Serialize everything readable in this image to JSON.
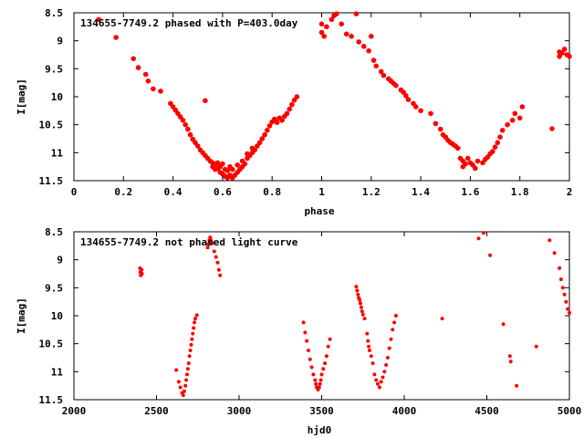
{
  "chart_data": [
    {
      "type": "scatter",
      "title": "134655-7749.2 phased with P=403.0day",
      "xlabel": "phase",
      "ylabel": "I[mag]",
      "xlim": [
        0,
        2
      ],
      "ylim": [
        11.5,
        8.5
      ],
      "y_inverted": true,
      "x_ticks": [
        "0",
        "0.2",
        "0.4",
        "0.6",
        "0.8",
        "1",
        "1.2",
        "1.4",
        "1.6",
        "1.8",
        "2"
      ],
      "y_ticks": [
        "8.5",
        "9",
        "9.5",
        "10",
        "10.5",
        "11",
        "11.5"
      ],
      "marker_color": "#ff0000",
      "points": [
        [
          0.1,
          8.62
        ],
        [
          0.17,
          8.94
        ],
        [
          0.24,
          9.32
        ],
        [
          0.26,
          9.48
        ],
        [
          0.29,
          9.6
        ],
        [
          0.3,
          9.72
        ],
        [
          0.32,
          9.86
        ],
        [
          0.35,
          9.9
        ],
        [
          0.39,
          10.12
        ],
        [
          0.4,
          10.18
        ],
        [
          0.41,
          10.24
        ],
        [
          0.42,
          10.3
        ],
        [
          0.43,
          10.36
        ],
        [
          0.44,
          10.42
        ],
        [
          0.45,
          10.5
        ],
        [
          0.46,
          10.58
        ],
        [
          0.47,
          10.68
        ],
        [
          0.48,
          10.76
        ],
        [
          0.49,
          10.82
        ],
        [
          0.5,
          10.88
        ],
        [
          0.51,
          10.95
        ],
        [
          0.52,
          11.0
        ],
        [
          0.53,
          11.05
        ],
        [
          0.54,
          11.1
        ],
        [
          0.55,
          11.15
        ],
        [
          0.56,
          11.18
        ],
        [
          0.56,
          11.25
        ],
        [
          0.57,
          11.22
        ],
        [
          0.57,
          11.3
        ],
        [
          0.58,
          11.28
        ],
        [
          0.58,
          11.18
        ],
        [
          0.59,
          11.35
        ],
        [
          0.59,
          11.25
        ],
        [
          0.6,
          11.38
        ],
        [
          0.6,
          11.2
        ],
        [
          0.61,
          11.42
        ],
        [
          0.61,
          11.3
        ],
        [
          0.62,
          11.45
        ],
        [
          0.62,
          11.32
        ],
        [
          0.63,
          11.4
        ],
        [
          0.63,
          11.25
        ],
        [
          0.64,
          11.45
        ],
        [
          0.64,
          11.3
        ],
        [
          0.65,
          11.4
        ],
        [
          0.66,
          11.35
        ],
        [
          0.66,
          11.22
        ],
        [
          0.67,
          11.3
        ],
        [
          0.68,
          11.25
        ],
        [
          0.68,
          11.15
        ],
        [
          0.69,
          11.2
        ],
        [
          0.7,
          11.1
        ],
        [
          0.7,
          11.02
        ],
        [
          0.71,
          11.05
        ],
        [
          0.72,
          11.0
        ],
        [
          0.72,
          10.92
        ],
        [
          0.73,
          10.95
        ],
        [
          0.74,
          10.88
        ],
        [
          0.75,
          10.82
        ],
        [
          0.76,
          10.75
        ],
        [
          0.77,
          10.68
        ],
        [
          0.78,
          10.6
        ],
        [
          0.79,
          10.52
        ],
        [
          0.8,
          10.45
        ],
        [
          0.81,
          10.4
        ],
        [
          0.82,
          10.46
        ],
        [
          0.83,
          10.38
        ],
        [
          0.84,
          10.42
        ],
        [
          0.85,
          10.35
        ],
        [
          0.86,
          10.3
        ],
        [
          0.87,
          10.22
        ],
        [
          0.88,
          10.14
        ],
        [
          0.89,
          10.06
        ],
        [
          0.9,
          10.0
        ],
        [
          0.53,
          10.07
        ],
        [
          1.0,
          8.7
        ],
        [
          1.0,
          8.85
        ],
        [
          1.01,
          8.92
        ],
        [
          1.02,
          8.75
        ],
        [
          1.04,
          8.62
        ],
        [
          1.05,
          8.55
        ],
        [
          1.06,
          8.52
        ],
        [
          1.08,
          8.7
        ],
        [
          1.1,
          8.88
        ],
        [
          1.12,
          8.92
        ],
        [
          1.14,
          8.52
        ],
        [
          1.15,
          9.02
        ],
        [
          1.17,
          9.1
        ],
        [
          1.19,
          9.18
        ],
        [
          1.2,
          8.92
        ],
        [
          1.21,
          9.35
        ],
        [
          1.22,
          9.45
        ],
        [
          1.24,
          9.55
        ],
        [
          1.25,
          9.62
        ],
        [
          1.27,
          9.68
        ],
        [
          1.28,
          9.72
        ],
        [
          1.29,
          9.76
        ],
        [
          1.3,
          9.8
        ],
        [
          1.32,
          9.88
        ],
        [
          1.33,
          9.92
        ],
        [
          1.34,
          9.98
        ],
        [
          1.35,
          10.05
        ],
        [
          1.37,
          10.12
        ],
        [
          1.38,
          10.18
        ],
        [
          1.4,
          10.25
        ],
        [
          1.44,
          10.3
        ],
        [
          1.46,
          10.48
        ],
        [
          1.48,
          10.58
        ],
        [
          1.49,
          10.68
        ],
        [
          1.5,
          10.72
        ],
        [
          1.51,
          10.78
        ],
        [
          1.52,
          10.82
        ],
        [
          1.53,
          10.85
        ],
        [
          1.54,
          10.88
        ],
        [
          1.55,
          10.92
        ],
        [
          1.56,
          11.1
        ],
        [
          1.57,
          11.15
        ],
        [
          1.57,
          11.25
        ],
        [
          1.58,
          11.2
        ],
        [
          1.59,
          11.1
        ],
        [
          1.6,
          11.18
        ],
        [
          1.61,
          11.22
        ],
        [
          1.62,
          11.28
        ],
        [
          1.63,
          11.15
        ],
        [
          1.65,
          11.18
        ],
        [
          1.66,
          11.12
        ],
        [
          1.67,
          11.08
        ],
        [
          1.68,
          11.02
        ],
        [
          1.69,
          10.98
        ],
        [
          1.7,
          10.9
        ],
        [
          1.71,
          10.82
        ],
        [
          1.72,
          10.72
        ],
        [
          1.73,
          10.6
        ],
        [
          1.75,
          10.5
        ],
        [
          1.77,
          10.42
        ],
        [
          1.78,
          10.3
        ],
        [
          1.8,
          10.38
        ],
        [
          1.81,
          10.18
        ],
        [
          1.93,
          10.57
        ],
        [
          1.96,
          9.2
        ],
        [
          1.96,
          9.28
        ],
        [
          1.97,
          9.22
        ],
        [
          1.98,
          9.15
        ],
        [
          1.99,
          9.25
        ],
        [
          2.0,
          9.28
        ]
      ]
    },
    {
      "type": "scatter",
      "title": "134655-7749.2 not phased light curve",
      "xlabel": "hjd0",
      "ylabel": "I[mag]",
      "xlim": [
        2000,
        5000
      ],
      "ylim": [
        11.5,
        8.5
      ],
      "y_inverted": true,
      "x_ticks": [
        "2000",
        "2500",
        "3000",
        "3500",
        "4000",
        "4500",
        "5000"
      ],
      "y_ticks": [
        "8.5",
        "9",
        "9.5",
        "10",
        "10.5",
        "11",
        "11.5"
      ],
      "marker_color": "#ff0000",
      "points": [
        [
          2400,
          9.15
        ],
        [
          2402,
          9.22
        ],
        [
          2405,
          9.28
        ],
        [
          2410,
          9.18
        ],
        [
          2412,
          9.25
        ],
        [
          2620,
          10.97
        ],
        [
          2635,
          11.18
        ],
        [
          2645,
          11.28
        ],
        [
          2655,
          11.38
        ],
        [
          2662,
          11.42
        ],
        [
          2668,
          11.35
        ],
        [
          2675,
          11.25
        ],
        [
          2680,
          11.15
        ],
        [
          2685,
          11.05
        ],
        [
          2690,
          10.95
        ],
        [
          2695,
          10.85
        ],
        [
          2700,
          10.72
        ],
        [
          2705,
          10.62
        ],
        [
          2710,
          10.52
        ],
        [
          2715,
          10.42
        ],
        [
          2720,
          10.32
        ],
        [
          2725,
          10.22
        ],
        [
          2730,
          10.12
        ],
        [
          2735,
          10.05
        ],
        [
          2745,
          9.99
        ],
        [
          2810,
          8.78
        ],
        [
          2815,
          8.72
        ],
        [
          2820,
          8.65
        ],
        [
          2825,
          8.6
        ],
        [
          2830,
          8.65
        ],
        [
          2840,
          8.7
        ],
        [
          2850,
          8.85
        ],
        [
          2860,
          8.95
        ],
        [
          2870,
          9.05
        ],
        [
          2878,
          9.18
        ],
        [
          2885,
          9.28
        ],
        [
          3390,
          10.12
        ],
        [
          3400,
          10.3
        ],
        [
          3410,
          10.45
        ],
        [
          3420,
          10.62
        ],
        [
          3430,
          10.78
        ],
        [
          3440,
          10.92
        ],
        [
          3450,
          11.05
        ],
        [
          3460,
          11.15
        ],
        [
          3465,
          11.22
        ],
        [
          3470,
          11.28
        ],
        [
          3478,
          11.32
        ],
        [
          3485,
          11.28
        ],
        [
          3490,
          11.22
        ],
        [
          3495,
          11.15
        ],
        [
          3500,
          11.05
        ],
        [
          3510,
          10.95
        ],
        [
          3520,
          10.85
        ],
        [
          3530,
          10.72
        ],
        [
          3540,
          10.55
        ],
        [
          3550,
          10.42
        ],
        [
          3710,
          9.48
        ],
        [
          3715,
          9.55
        ],
        [
          3720,
          9.62
        ],
        [
          3725,
          9.68
        ],
        [
          3730,
          9.72
        ],
        [
          3735,
          9.78
        ],
        [
          3740,
          9.85
        ],
        [
          3745,
          9.92
        ],
        [
          3750,
          9.98
        ],
        [
          3760,
          10.05
        ],
        [
          3775,
          10.32
        ],
        [
          3780,
          10.45
        ],
        [
          3785,
          10.55
        ],
        [
          3790,
          10.62
        ],
        [
          3800,
          10.72
        ],
        [
          3810,
          10.85
        ],
        [
          3820,
          11.05
        ],
        [
          3830,
          11.15
        ],
        [
          3840,
          11.22
        ],
        [
          3850,
          11.28
        ],
        [
          3860,
          11.18
        ],
        [
          3870,
          11.1
        ],
        [
          3880,
          11.0
        ],
        [
          3890,
          10.88
        ],
        [
          3900,
          10.75
        ],
        [
          3910,
          10.58
        ],
        [
          3920,
          10.42
        ],
        [
          3930,
          10.25
        ],
        [
          3940,
          10.12
        ],
        [
          3950,
          10.0
        ],
        [
          4230,
          10.05
        ],
        [
          4450,
          8.62
        ],
        [
          4480,
          8.52
        ],
        [
          4520,
          8.92
        ],
        [
          4600,
          10.15
        ],
        [
          4640,
          10.72
        ],
        [
          4645,
          10.82
        ],
        [
          4680,
          11.25
        ],
        [
          4800,
          10.55
        ],
        [
          4880,
          8.65
        ],
        [
          4910,
          8.88
        ],
        [
          4940,
          9.15
        ],
        [
          4950,
          9.35
        ],
        [
          4960,
          9.5
        ],
        [
          4970,
          9.62
        ],
        [
          4980,
          9.75
        ],
        [
          4990,
          9.88
        ],
        [
          5000,
          9.95
        ]
      ]
    }
  ]
}
